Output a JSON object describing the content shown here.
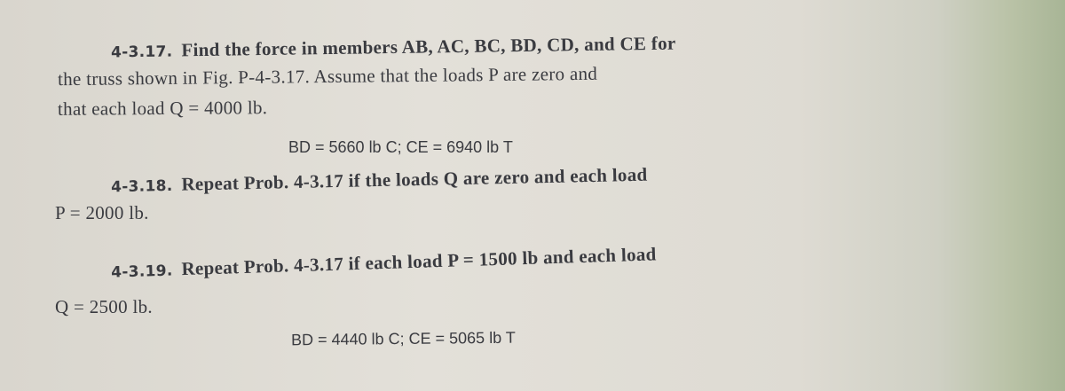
{
  "problems": [
    {
      "number": "4-3.17.",
      "lines": [
        "Find the force in members AB, AC, BC, BD, CD, and CE for",
        "the truss shown in Fig. P-4-3.17. Assume that the loads P are zero and",
        "that each load Q = 4000 lb."
      ],
      "answer": "BD = 5660 lb C; CE = 6940 lb T"
    },
    {
      "number": "4-3.18.",
      "lines": [
        "Repeat Prob. 4-3.17 if the loads Q are zero and each load",
        "P = 2000 lb."
      ]
    },
    {
      "number": "4-3.19.",
      "lines": [
        "Repeat Prob. 4-3.17 if each load P = 1500 lb and each load",
        "Q = 2500 lb."
      ],
      "answer": "BD = 4440 lb C; CE = 5065 lb T"
    }
  ]
}
